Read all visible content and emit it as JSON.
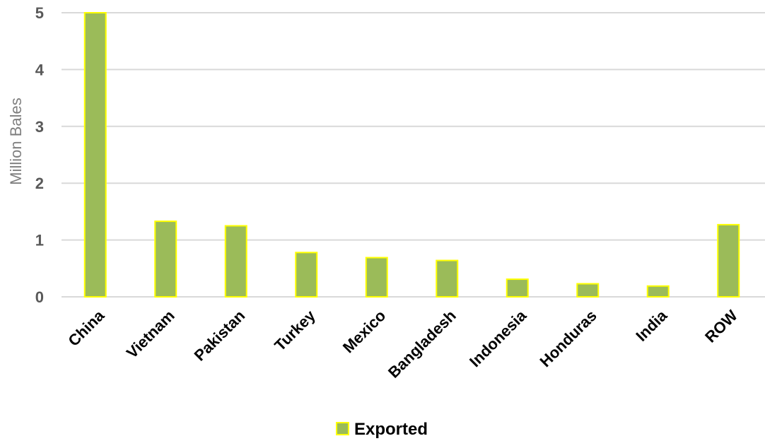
{
  "chart_data": {
    "type": "bar",
    "title": "",
    "xlabel": "",
    "ylabel": "Million Bales",
    "ylim": [
      0,
      5
    ],
    "yticks": [
      0,
      1,
      2,
      3,
      4,
      5
    ],
    "grid": true,
    "legend_position": "bottom",
    "categories": [
      "China",
      "Vietnam",
      "Pakistan",
      "Turkey",
      "Mexico",
      "Bangladesh",
      "Indonesia",
      "Honduras",
      "India",
      "ROW"
    ],
    "series": [
      {
        "name": "Exported",
        "values": [
          5.0,
          1.33,
          1.25,
          0.78,
          0.69,
          0.64,
          0.31,
          0.23,
          0.19,
          1.27
        ],
        "fill": "#9bbb59",
        "stroke": "#ffff00"
      }
    ]
  }
}
